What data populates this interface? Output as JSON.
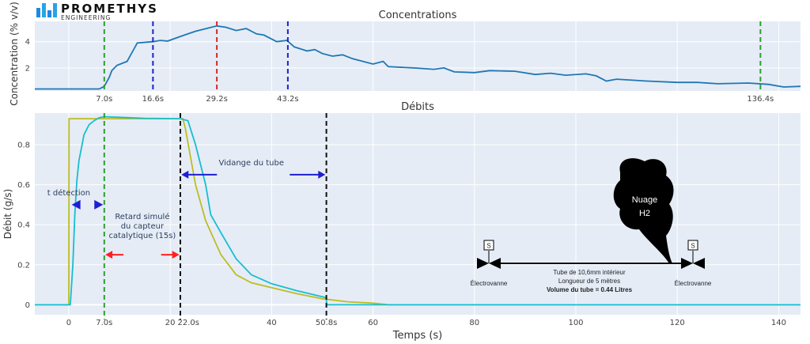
{
  "logo": {
    "name": "PROMETHYS",
    "sub": "ENGINEERING"
  },
  "chart_data": [
    {
      "type": "line",
      "title": "Concentrations",
      "xlabel": "",
      "ylabel": "Concentration (% v/v)",
      "xlim": [
        -6.7,
        144.3
      ],
      "ylim": [
        0.25,
        5.55
      ],
      "yticks": [
        2,
        4
      ],
      "grid": true,
      "series": [
        {
          "color": "#1f77b4",
          "x": [
            -6.7,
            6,
            7,
            8,
            8.5,
            9.5,
            11.5,
            12.5,
            13.5,
            16.6,
            18,
            19.5,
            22,
            25,
            29.2,
            31,
            33,
            35,
            37,
            38.5,
            41,
            43,
            44.5,
            47,
            48.5,
            50,
            52,
            54,
            56,
            60,
            62,
            63,
            68,
            72,
            74,
            76,
            80,
            83,
            88,
            92,
            95,
            98,
            102,
            104,
            106,
            108,
            114,
            120,
            124,
            128,
            134,
            138,
            141,
            144.3
          ],
          "y": [
            0.4,
            0.4,
            0.6,
            1.3,
            1.8,
            2.2,
            2.5,
            3.2,
            3.9,
            4.0,
            4.1,
            4.05,
            4.4,
            4.8,
            5.2,
            5.1,
            4.85,
            5.0,
            4.6,
            4.5,
            4.0,
            4.1,
            3.6,
            3.3,
            3.4,
            3.1,
            2.9,
            3.0,
            2.7,
            2.3,
            2.5,
            2.1,
            2.0,
            1.9,
            2.0,
            1.7,
            1.65,
            1.8,
            1.75,
            1.5,
            1.6,
            1.45,
            1.55,
            1.4,
            1.0,
            1.15,
            1.0,
            0.9,
            0.9,
            0.8,
            0.85,
            0.75,
            0.55,
            0.6
          ]
        }
      ],
      "vlines": [
        {
          "x": 7.0,
          "label": "7.0s",
          "color": "#2ca02c"
        },
        {
          "x": 16.6,
          "label": "16.6s",
          "color": "#1f1fd0"
        },
        {
          "x": 29.2,
          "label": "29.2s",
          "color": "#d62728"
        },
        {
          "x": 43.2,
          "label": "43.2s",
          "color": "#1f1fd0"
        },
        {
          "x": 136.4,
          "label": "136.4s",
          "color": "#2ca02c"
        }
      ]
    },
    {
      "type": "line",
      "title": "Débits",
      "xlabel": "Temps (s)",
      "ylabel": "Débit (g/s)",
      "xlim": [
        -6.7,
        144.3
      ],
      "ylim": [
        -0.05,
        0.958
      ],
      "xticks": [
        0,
        20,
        40,
        60,
        80,
        100,
        120,
        140
      ],
      "yticks": [
        0,
        0.2,
        0.4,
        0.6,
        0.8
      ],
      "grid": true,
      "series": [
        {
          "color": "#bcbd22",
          "x": [
            -6.7,
            0,
            0.05,
            22.5,
            23,
            25,
            27,
            30,
            33,
            36,
            40,
            45,
            50,
            55,
            60,
            62,
            63,
            144.3
          ],
          "y": [
            0,
            0,
            0.93,
            0.93,
            0.88,
            0.6,
            0.42,
            0.25,
            0.15,
            0.11,
            0.085,
            0.055,
            0.03,
            0.015,
            0.008,
            0.003,
            0,
            0
          ]
        },
        {
          "color": "#17becf",
          "x": [
            -6.7,
            0.3,
            0.8,
            1.2,
            1.6,
            2,
            3,
            4,
            5,
            6,
            7,
            10,
            15,
            22,
            23.5,
            25,
            27,
            28,
            30,
            33,
            36,
            40,
            45,
            50.8,
            50.85,
            144.3
          ],
          "y": [
            0,
            0,
            0.2,
            0.45,
            0.62,
            0.72,
            0.85,
            0.9,
            0.92,
            0.935,
            0.94,
            0.937,
            0.932,
            0.93,
            0.92,
            0.8,
            0.6,
            0.45,
            0.36,
            0.23,
            0.15,
            0.105,
            0.07,
            0.035,
            0,
            0
          ]
        }
      ],
      "vlines": [
        {
          "x": 7.0,
          "label": "7.0s",
          "color": "#2ca02c"
        },
        {
          "x": 22.0,
          "label": "22.0s",
          "color": "#111111"
        },
        {
          "x": 50.8,
          "label": "50.8s",
          "color": "#111111"
        }
      ],
      "annotations": [
        {
          "text": "t détection",
          "x": 0,
          "y": 0.5,
          "arrow_from": 1.2,
          "arrow_to": 6.6,
          "color": "#1f1fd0"
        },
        {
          "text": [
            "Retard simulé",
            "du capteur",
            "catalytique (15s)"
          ],
          "x": 14.5,
          "y": 0.25,
          "arrow_from": 7.2,
          "arrow_to": 21.8,
          "color": "#ff2020"
        },
        {
          "text": "Vidange du tube",
          "x": 36,
          "y": 0.65,
          "arrow_from": 22.2,
          "arrow_to": 50.6,
          "color": "#1f1fd0"
        }
      ]
    }
  ],
  "diagram": {
    "valve_left_label": "Électrovanne",
    "valve_right_label": "Électrovanne",
    "solenoid_label": "S",
    "cloud_label": [
      "Nuage",
      "H2"
    ],
    "tube_text": [
      "Tube de 10,6mm intérieur",
      "Longueur de 5 mètres",
      "Volume du tube = 0.44 Litres"
    ]
  }
}
